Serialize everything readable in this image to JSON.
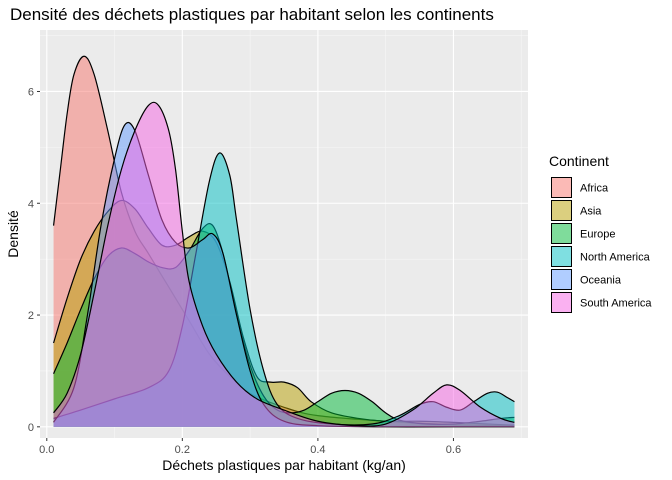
{
  "chart_data": {
    "type": "area",
    "subtype": "density",
    "title": "Densité des déchets plastiques par habitant selon les continents",
    "xlabel": "Déchets plastiques par habitant (kg/an)",
    "ylabel": "Densité",
    "xlim": [
      -0.01,
      0.71
    ],
    "ylim": [
      -0.2,
      7.1
    ],
    "x_ticks": [
      0.0,
      0.2,
      0.4,
      0.6
    ],
    "x_tick_labels": [
      "0.0",
      "0.2",
      "0.4",
      "0.6"
    ],
    "y_ticks": [
      0,
      2,
      4,
      6
    ],
    "y_tick_labels": [
      "0",
      "2",
      "4",
      "6"
    ],
    "grid": true,
    "legend": {
      "title": "Continent",
      "position": "right"
    },
    "series": [
      {
        "name": "Africa",
        "color": "#F8766D",
        "points": [
          [
            0.01,
            3.6
          ],
          [
            0.02,
            4.6
          ],
          [
            0.03,
            5.6
          ],
          [
            0.04,
            6.3
          ],
          [
            0.055,
            6.63
          ],
          [
            0.07,
            6.3
          ],
          [
            0.09,
            5.3
          ],
          [
            0.11,
            4.2
          ],
          [
            0.13,
            3.5
          ],
          [
            0.15,
            3.1
          ],
          [
            0.18,
            2.5
          ],
          [
            0.21,
            1.9
          ],
          [
            0.24,
            1.3
          ],
          [
            0.27,
            0.9
          ],
          [
            0.3,
            0.6
          ],
          [
            0.35,
            0.35
          ],
          [
            0.4,
            0.2
          ],
          [
            0.5,
            0.1
          ],
          [
            0.6,
            0.04
          ],
          [
            0.69,
            0.02
          ]
        ]
      },
      {
        "name": "Asia",
        "color": "#B79F00",
        "points": [
          [
            0.01,
            1.5
          ],
          [
            0.03,
            2.3
          ],
          [
            0.05,
            3.0
          ],
          [
            0.07,
            3.5
          ],
          [
            0.09,
            3.85
          ],
          [
            0.11,
            4.05
          ],
          [
            0.13,
            3.9
          ],
          [
            0.15,
            3.55
          ],
          [
            0.17,
            3.25
          ],
          [
            0.19,
            3.25
          ],
          [
            0.21,
            3.4
          ],
          [
            0.23,
            3.5
          ],
          [
            0.25,
            3.3
          ],
          [
            0.27,
            2.6
          ],
          [
            0.29,
            1.6
          ],
          [
            0.31,
            0.9
          ],
          [
            0.33,
            0.8
          ],
          [
            0.35,
            0.8
          ],
          [
            0.37,
            0.7
          ],
          [
            0.39,
            0.45
          ],
          [
            0.42,
            0.25
          ],
          [
            0.46,
            0.15
          ],
          [
            0.5,
            0.1
          ],
          [
            0.55,
            0.1
          ],
          [
            0.6,
            0.08
          ],
          [
            0.65,
            0.05
          ],
          [
            0.69,
            0.03
          ]
        ]
      },
      {
        "name": "Europe",
        "color": "#00BA38",
        "points": [
          [
            0.01,
            0.95
          ],
          [
            0.03,
            1.5
          ],
          [
            0.05,
            2.1
          ],
          [
            0.07,
            2.65
          ],
          [
            0.09,
            3.05
          ],
          [
            0.11,
            3.2
          ],
          [
            0.13,
            3.1
          ],
          [
            0.15,
            2.95
          ],
          [
            0.17,
            2.85
          ],
          [
            0.19,
            2.85
          ],
          [
            0.21,
            3.15
          ],
          [
            0.23,
            3.55
          ],
          [
            0.245,
            3.6
          ],
          [
            0.26,
            3.1
          ],
          [
            0.28,
            2.0
          ],
          [
            0.3,
            1.1
          ],
          [
            0.32,
            0.55
          ],
          [
            0.34,
            0.3
          ],
          [
            0.36,
            0.25
          ],
          [
            0.38,
            0.3
          ],
          [
            0.4,
            0.45
          ],
          [
            0.42,
            0.6
          ],
          [
            0.44,
            0.65
          ],
          [
            0.46,
            0.6
          ],
          [
            0.48,
            0.45
          ],
          [
            0.5,
            0.25
          ],
          [
            0.52,
            0.12
          ],
          [
            0.56,
            0.05
          ],
          [
            0.6,
            0.05
          ],
          [
            0.64,
            0.1
          ],
          [
            0.67,
            0.15
          ],
          [
            0.69,
            0.17
          ]
        ]
      },
      {
        "name": "North America",
        "color": "#00BFC4",
        "points": [
          [
            0.01,
            0.15
          ],
          [
            0.05,
            0.3
          ],
          [
            0.1,
            0.5
          ],
          [
            0.15,
            0.7
          ],
          [
            0.18,
            1.0
          ],
          [
            0.2,
            1.8
          ],
          [
            0.22,
            3.1
          ],
          [
            0.24,
            4.4
          ],
          [
            0.255,
            4.9
          ],
          [
            0.27,
            4.5
          ],
          [
            0.28,
            3.7
          ],
          [
            0.3,
            2.1
          ],
          [
            0.32,
            1.0
          ],
          [
            0.34,
            0.4
          ],
          [
            0.37,
            0.15
          ],
          [
            0.42,
            0.05
          ],
          [
            0.48,
            0.05
          ],
          [
            0.52,
            0.2
          ],
          [
            0.55,
            0.4
          ],
          [
            0.57,
            0.45
          ],
          [
            0.59,
            0.35
          ],
          [
            0.61,
            0.3
          ],
          [
            0.63,
            0.45
          ],
          [
            0.65,
            0.6
          ],
          [
            0.665,
            0.62
          ],
          [
            0.68,
            0.52
          ],
          [
            0.69,
            0.45
          ]
        ]
      },
      {
        "name": "Oceania",
        "color": "#619CFF",
        "points": [
          [
            0.01,
            0.08
          ],
          [
            0.04,
            0.7
          ],
          [
            0.06,
            2.0
          ],
          [
            0.08,
            3.6
          ],
          [
            0.1,
            4.8
          ],
          [
            0.115,
            5.4
          ],
          [
            0.13,
            5.3
          ],
          [
            0.15,
            4.5
          ],
          [
            0.17,
            3.7
          ],
          [
            0.19,
            3.3
          ],
          [
            0.21,
            3.2
          ],
          [
            0.23,
            3.35
          ],
          [
            0.245,
            3.45
          ],
          [
            0.26,
            3.1
          ],
          [
            0.28,
            2.0
          ],
          [
            0.3,
            1.0
          ],
          [
            0.32,
            0.4
          ],
          [
            0.35,
            0.1
          ],
          [
            0.4,
            0.02
          ],
          [
            0.5,
            0.0
          ],
          [
            0.6,
            0.0
          ],
          [
            0.69,
            0.0
          ]
        ]
      },
      {
        "name": "South America",
        "color": "#F564E3",
        "points": [
          [
            0.01,
            0.25
          ],
          [
            0.03,
            0.6
          ],
          [
            0.05,
            1.3
          ],
          [
            0.07,
            2.4
          ],
          [
            0.09,
            3.6
          ],
          [
            0.11,
            4.6
          ],
          [
            0.13,
            5.3
          ],
          [
            0.15,
            5.75
          ],
          [
            0.165,
            5.75
          ],
          [
            0.18,
            5.3
          ],
          [
            0.19,
            4.6
          ],
          [
            0.2,
            3.5
          ],
          [
            0.21,
            2.6
          ],
          [
            0.23,
            1.8
          ],
          [
            0.25,
            1.3
          ],
          [
            0.28,
            0.8
          ],
          [
            0.31,
            0.5
          ],
          [
            0.35,
            0.3
          ],
          [
            0.4,
            0.1
          ],
          [
            0.46,
            0.02
          ],
          [
            0.5,
            0.05
          ],
          [
            0.54,
            0.3
          ],
          [
            0.57,
            0.6
          ],
          [
            0.59,
            0.75
          ],
          [
            0.61,
            0.65
          ],
          [
            0.64,
            0.35
          ],
          [
            0.67,
            0.15
          ],
          [
            0.69,
            0.08
          ]
        ]
      }
    ]
  }
}
